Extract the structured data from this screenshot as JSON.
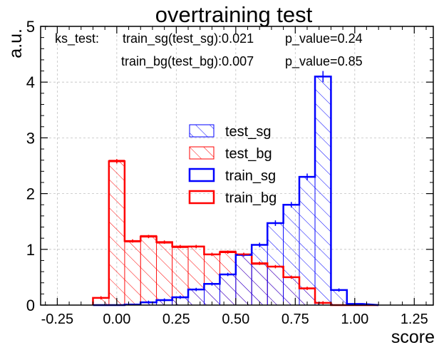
{
  "chart_data": {
    "type": "histogram",
    "title": "overtraining test",
    "xlabel": "score",
    "ylabel": "a.u.",
    "xlim": [
      -0.32,
      1.33
    ],
    "ylim": [
      0,
      5
    ],
    "xticks": [
      -0.25,
      0.0,
      0.25,
      0.5,
      0.75,
      1.0,
      1.25
    ],
    "xtick_labels": [
      "-0.25",
      "0.00",
      "0.25",
      "0.50",
      "0.75",
      "1.00",
      "1.25"
    ],
    "yticks": [
      0,
      1,
      2,
      3,
      4,
      5
    ],
    "ytick_labels": [
      "0",
      "1",
      "2",
      "3",
      "4",
      "5"
    ],
    "grid": true,
    "bin_edges": [
      -0.1,
      -0.033,
      0.033,
      0.1,
      0.167,
      0.233,
      0.3,
      0.367,
      0.433,
      0.5,
      0.567,
      0.633,
      0.7,
      0.767,
      0.833,
      0.9,
      0.967,
      1.033,
      1.1
    ],
    "series": [
      {
        "name": "test_sg",
        "style": "hatched",
        "color": "#0000ff",
        "values": [
          0,
          0,
          0.01,
          0.05,
          0.08,
          0.13,
          0.28,
          0.39,
          0.55,
          0.9,
          1.08,
          1.47,
          1.8,
          2.31,
          4.1,
          0.27,
          0
        ]
      },
      {
        "name": "test_bg",
        "style": "hatched",
        "color": "#ff0000",
        "values": [
          0.13,
          2.6,
          1.13,
          1.25,
          1.11,
          1.03,
          1.06,
          0.91,
          0.97,
          0.9,
          0.73,
          0.69,
          0.5,
          0.29,
          0.04,
          0,
          0
        ]
      },
      {
        "name": "train_sg",
        "style": "step",
        "color": "#0000ff",
        "values": [
          0,
          0,
          0.01,
          0.05,
          0.09,
          0.14,
          0.28,
          0.38,
          0.55,
          0.9,
          1.08,
          1.47,
          1.8,
          2.3,
          4.1,
          0.27,
          0.02
        ]
      },
      {
        "name": "train_bg",
        "style": "step",
        "color": "#ff0000",
        "values": [
          0.13,
          2.58,
          1.15,
          1.23,
          1.13,
          1.05,
          1.05,
          0.91,
          0.95,
          0.91,
          0.75,
          0.69,
          0.5,
          0.3,
          0.04,
          0,
          0
        ]
      }
    ],
    "error_bars": {
      "train_sg": [
        0,
        0,
        0.005,
        0.01,
        0.01,
        0.015,
        0.02,
        0.02,
        0.03,
        0.03,
        0.04,
        0.05,
        0.05,
        0.06,
        0.1,
        0.02,
        0.01
      ],
      "train_bg": [
        0.01,
        0.04,
        0.03,
        0.03,
        0.03,
        0.03,
        0.03,
        0.03,
        0.03,
        0.03,
        0.03,
        0.02,
        0.02,
        0.02,
        0.01,
        0,
        0
      ]
    },
    "annotations": {
      "ks_label": "ks_test:",
      "line1_stat": "train_sg(test_sg):0.021",
      "line1_p": "p_value=0.24",
      "line2_stat": "train_bg(test_bg):0.007",
      "line2_p": "p_value=0.85"
    },
    "legend": {
      "position": "center",
      "entries": [
        "test_sg",
        "test_bg",
        "train_sg",
        "train_bg"
      ]
    }
  }
}
